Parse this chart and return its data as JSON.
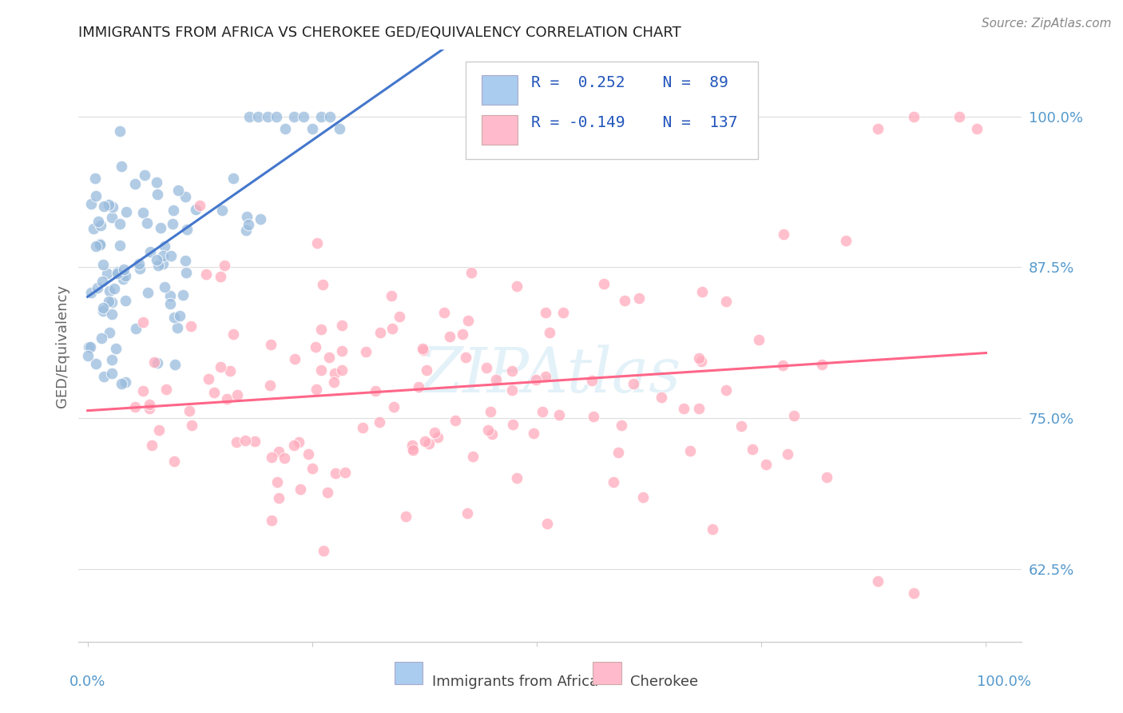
{
  "title": "IMMIGRANTS FROM AFRICA VS CHEROKEE GED/EQUIVALENCY CORRELATION CHART",
  "source": "Source: ZipAtlas.com",
  "ylabel": "GED/Equivalency",
  "yticks": [
    "62.5%",
    "75.0%",
    "87.5%",
    "100.0%"
  ],
  "ytick_vals": [
    0.625,
    0.75,
    0.875,
    1.0
  ],
  "legend_label1": "Immigrants from Africa",
  "legend_label2": "Cherokee",
  "r1": 0.252,
  "n1": 89,
  "r2": -0.149,
  "n2": 137,
  "color_blue": "#99BBDD",
  "color_pink": "#FFAABB",
  "color_blue_fill": "#AACCEE",
  "color_pink_fill": "#FFBBCC",
  "color_blue_line": "#4477CC",
  "color_pink_line": "#FF6688",
  "color_dashed": "#99BBDD",
  "watermark_color": "#BBDDEE"
}
